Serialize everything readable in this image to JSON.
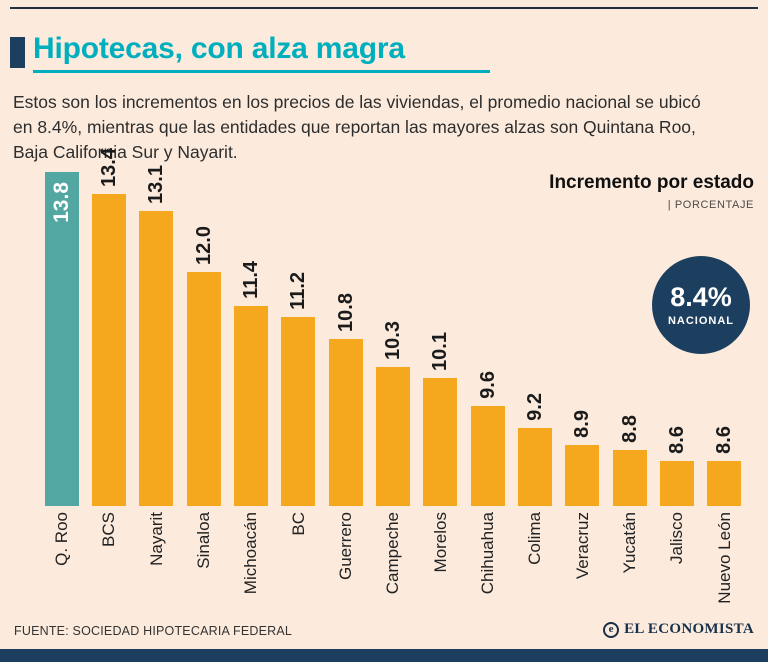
{
  "header": {
    "title": "Hipotecas, con alza magra",
    "intro": "Estos son los incrementos en los precios de las viviendas, el promedio nacional se ubicó en 8.4%, mientras que las entidades que reportan las mayores alzas son Quintana Roo, Baja California Sur y Nayarit."
  },
  "chart_header": {
    "title": "Incremento por estado",
    "unit_label": "| PORCENTAJE"
  },
  "national_badge": {
    "value": "8.4%",
    "label": "NACIONAL"
  },
  "footer": {
    "source": "FUENTE: SOCIEDAD HIPOTECARIA FEDERAL",
    "brand_e": "e",
    "brand": "EL ECONOMISTA"
  },
  "colors": {
    "background": "#fcebdd",
    "accent_teal": "#00afbe",
    "navy": "#1d3f5f",
    "bar_orange": "#f5a81e",
    "bar_teal": "#52a7a3",
    "text": "#2d2d2d"
  },
  "chart_data": {
    "type": "bar",
    "title": "Incremento por estado",
    "unit": "PORCENTAJE",
    "categories": [
      "Q. Roo",
      "BCS",
      "Nayarit",
      "Sinaloa",
      "Michoacán",
      "BC",
      "Guerrero",
      "Campeche",
      "Morelos",
      "Chihuahua",
      "Colima",
      "Veracruz",
      "Yucatán",
      "Jalisco",
      "Nuevo León"
    ],
    "values": [
      13.8,
      13.4,
      13.1,
      12.0,
      11.4,
      11.2,
      10.8,
      10.3,
      10.1,
      9.6,
      9.2,
      8.9,
      8.8,
      8.6,
      8.6
    ],
    "highlight_index": 0,
    "national_average": 8.4,
    "value_scale": {
      "min": 7.8,
      "max": 13.8
    },
    "legend": "none",
    "grid": false,
    "value_labels_rotated": true,
    "category_labels_rotated": true
  }
}
